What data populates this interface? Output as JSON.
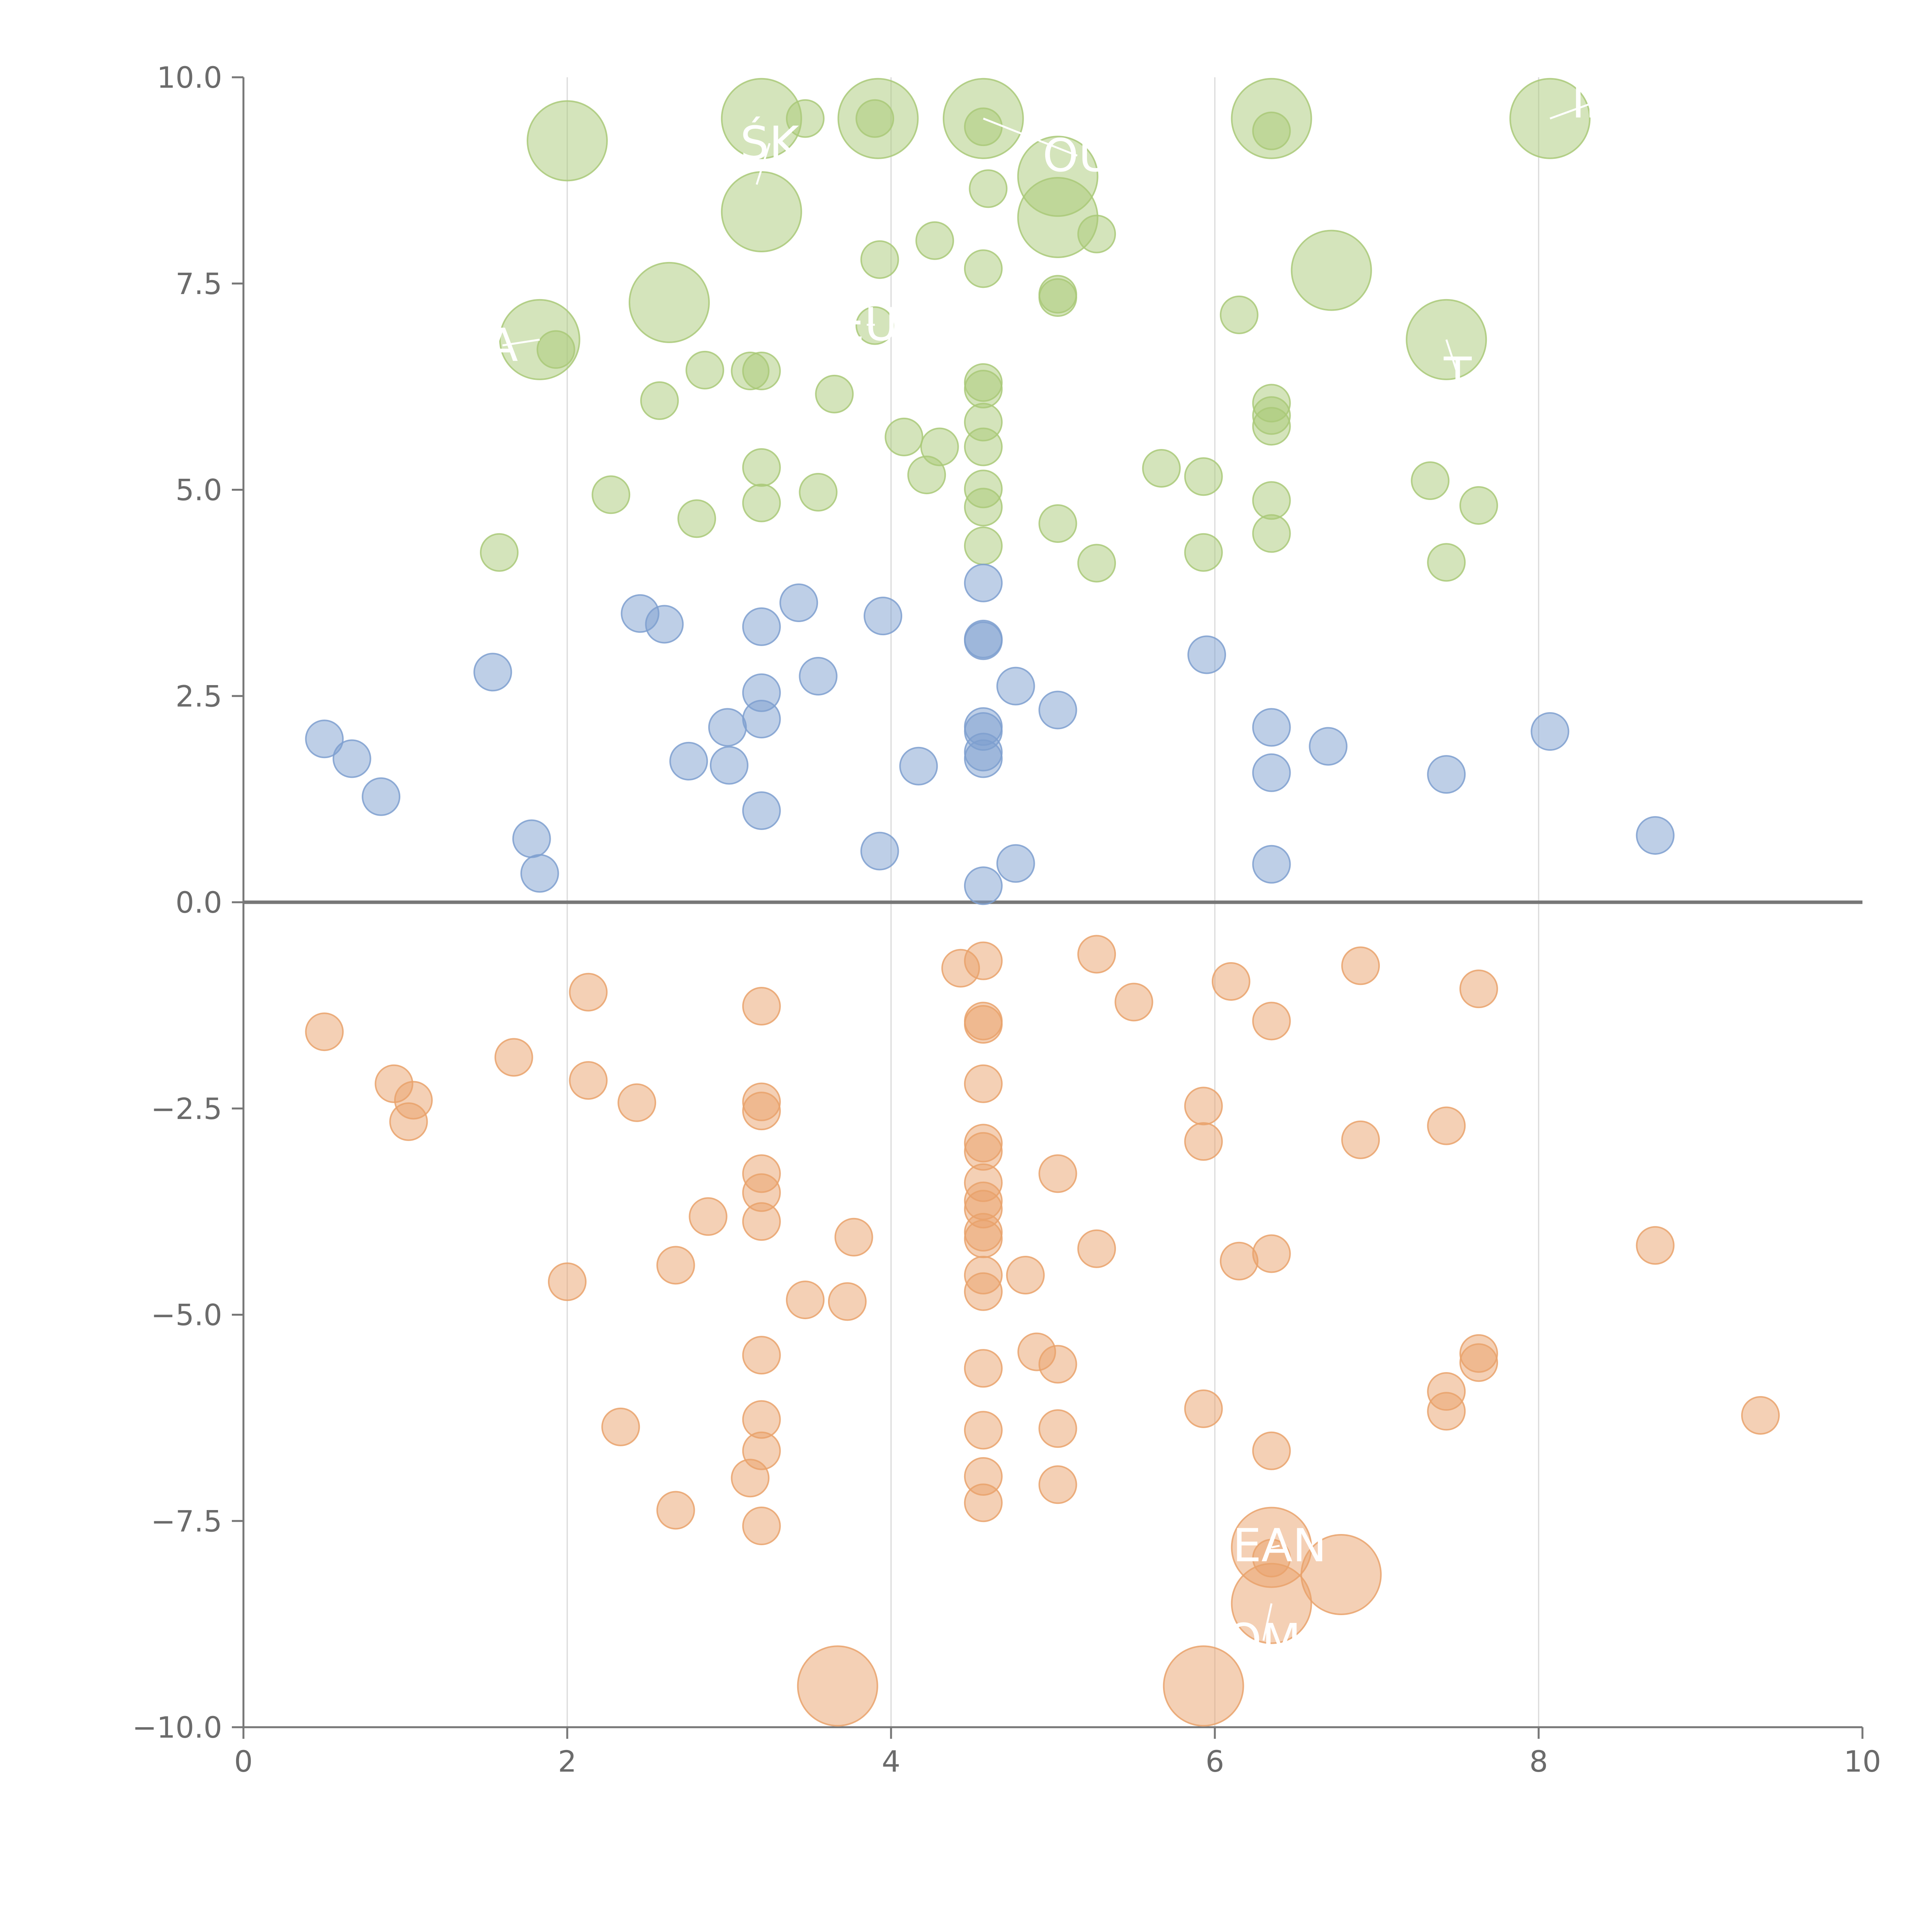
{
  "chart_data": {
    "type": "scatter",
    "title": "",
    "xlabel": "",
    "ylabel": "",
    "xlim": [
      0,
      10
    ],
    "ylim": [
      -10,
      10
    ],
    "x_ticks": [
      "0",
      "2",
      "4",
      "6",
      "8",
      "10"
    ],
    "y_ticks": [
      "10.0",
      "7.5",
      "5.0",
      "2.5",
      "0.0",
      "−2.5",
      "−5.0",
      "−7.5",
      "−10.0"
    ],
    "grid": "vertical lines at x ticks",
    "zero_line": 0,
    "colors": {
      "green": "#a9c978",
      "blue": "#7e9fcf",
      "orange": "#e9a26b"
    },
    "series": [
      {
        "color_key": "green",
        "points": [
          [
            2.0,
            9.23,
            1
          ],
          [
            3.2,
            9.5,
            1
          ],
          [
            3.47,
            9.5,
            0
          ],
          [
            3.92,
            9.5,
            1
          ],
          [
            3.9,
            9.5,
            0
          ],
          [
            4.57,
            9.5,
            1
          ],
          [
            4.57,
            9.4,
            0
          ],
          [
            6.35,
            9.5,
            1
          ],
          [
            6.35,
            9.35,
            0
          ],
          [
            8.07,
            9.5,
            1
          ],
          [
            5.03,
            8.8,
            1
          ],
          [
            5.03,
            8.3,
            1
          ],
          [
            3.2,
            8.37,
            1
          ],
          [
            4.6,
            8.65,
            0
          ],
          [
            5.27,
            8.1,
            0
          ],
          [
            4.27,
            8.02,
            0
          ],
          [
            3.93,
            7.79,
            0
          ],
          [
            4.57,
            7.68,
            0
          ],
          [
            6.72,
            7.66,
            1
          ],
          [
            2.63,
            7.27,
            1
          ],
          [
            5.03,
            7.37,
            0
          ],
          [
            5.03,
            7.33,
            0
          ],
          [
            6.15,
            7.12,
            0
          ],
          [
            3.9,
            6.99,
            0
          ],
          [
            1.83,
            6.82,
            1
          ],
          [
            1.93,
            6.7,
            0
          ],
          [
            7.43,
            6.82,
            1
          ],
          [
            2.85,
            6.45,
            0
          ],
          [
            3.13,
            6.44,
            0
          ],
          [
            3.2,
            6.44,
            0
          ],
          [
            4.57,
            6.3,
            0
          ],
          [
            4.57,
            6.22,
            0
          ],
          [
            3.65,
            6.16,
            0
          ],
          [
            2.57,
            6.08,
            0
          ],
          [
            6.35,
            6.05,
            0
          ],
          [
            6.35,
            5.9,
            0
          ],
          [
            6.35,
            5.77,
            0
          ],
          [
            4.57,
            5.82,
            0
          ],
          [
            4.08,
            5.64,
            0
          ],
          [
            4.3,
            5.52,
            0
          ],
          [
            4.57,
            5.52,
            0
          ],
          [
            5.67,
            5.26,
            0
          ],
          [
            3.2,
            5.27,
            0
          ],
          [
            4.22,
            5.18,
            0
          ],
          [
            5.93,
            5.16,
            0
          ],
          [
            7.33,
            5.11,
            0
          ],
          [
            4.57,
            5.01,
            0
          ],
          [
            2.27,
            4.94,
            0
          ],
          [
            3.55,
            4.97,
            0
          ],
          [
            3.2,
            4.84,
            0
          ],
          [
            4.57,
            4.79,
            0
          ],
          [
            6.35,
            4.87,
            0
          ],
          [
            7.63,
            4.81,
            0
          ],
          [
            2.8,
            4.65,
            0
          ],
          [
            5.03,
            4.59,
            0
          ],
          [
            4.57,
            4.32,
            0
          ],
          [
            5.93,
            4.24,
            0
          ],
          [
            1.58,
            4.24,
            0
          ],
          [
            6.35,
            4.47,
            0
          ],
          [
            5.27,
            4.11,
            0
          ],
          [
            7.43,
            4.12,
            0
          ]
        ]
      },
      {
        "color_key": "blue",
        "points": [
          [
            4.57,
            3.87,
            0
          ],
          [
            3.43,
            3.63,
            0
          ],
          [
            2.45,
            3.5,
            0
          ],
          [
            3.95,
            3.47,
            0
          ],
          [
            2.6,
            3.37,
            0
          ],
          [
            3.2,
            3.34,
            0
          ],
          [
            4.57,
            3.19,
            0
          ],
          [
            4.57,
            3.17,
            0
          ],
          [
            5.95,
            3.0,
            0
          ],
          [
            1.54,
            2.79,
            0
          ],
          [
            3.55,
            2.74,
            0
          ],
          [
            4.77,
            2.62,
            0
          ],
          [
            3.2,
            2.54,
            0
          ],
          [
            5.03,
            2.33,
            0
          ],
          [
            3.2,
            2.22,
            0
          ],
          [
            2.99,
            2.12,
            0
          ],
          [
            4.57,
            2.13,
            0
          ],
          [
            4.57,
            2.07,
            0
          ],
          [
            6.35,
            2.12,
            0
          ],
          [
            8.07,
            2.07,
            0
          ],
          [
            0.5,
            1.98,
            0
          ],
          [
            6.7,
            1.89,
            0
          ],
          [
            4.57,
            1.82,
            0
          ],
          [
            4.57,
            1.74,
            0
          ],
          [
            0.67,
            1.74,
            0
          ],
          [
            2.75,
            1.71,
            0
          ],
          [
            3.0,
            1.66,
            0
          ],
          [
            4.17,
            1.65,
            0
          ],
          [
            6.35,
            1.57,
            0
          ],
          [
            7.43,
            1.55,
            0
          ],
          [
            0.85,
            1.28,
            0
          ],
          [
            3.2,
            1.11,
            0
          ],
          [
            8.72,
            0.81,
            0
          ],
          [
            1.78,
            0.77,
            0
          ],
          [
            3.93,
            0.62,
            0
          ],
          [
            4.77,
            0.47,
            0
          ],
          [
            6.35,
            0.46,
            0
          ],
          [
            1.83,
            0.35,
            0
          ],
          [
            4.57,
            0.2,
            0
          ]
        ]
      },
      {
        "color_key": "orange",
        "points": [
          [
            5.27,
            -0.63,
            0
          ],
          [
            4.57,
            -0.71,
            0
          ],
          [
            6.9,
            -0.77,
            0
          ],
          [
            4.43,
            -0.8,
            0
          ],
          [
            6.1,
            -0.96,
            0
          ],
          [
            7.63,
            -1.05,
            0
          ],
          [
            2.13,
            -1.09,
            0
          ],
          [
            5.5,
            -1.21,
            0
          ],
          [
            3.2,
            -1.26,
            0
          ],
          [
            6.35,
            -1.44,
            0
          ],
          [
            4.57,
            -1.44,
            0
          ],
          [
            4.57,
            -1.48,
            0
          ],
          [
            0.5,
            -1.57,
            0
          ],
          [
            1.67,
            -1.88,
            0
          ],
          [
            2.13,
            -2.16,
            0
          ],
          [
            0.93,
            -2.2,
            0
          ],
          [
            4.57,
            -2.2,
            0
          ],
          [
            1.05,
            -2.4,
            0
          ],
          [
            2.43,
            -2.43,
            0
          ],
          [
            3.2,
            -2.42,
            0
          ],
          [
            5.93,
            -2.47,
            0
          ],
          [
            3.2,
            -2.53,
            0
          ],
          [
            1.02,
            -2.66,
            0
          ],
          [
            7.43,
            -2.71,
            0
          ],
          [
            6.9,
            -2.88,
            0
          ],
          [
            5.93,
            -2.9,
            0
          ],
          [
            4.57,
            -2.92,
            0
          ],
          [
            4.57,
            -3.02,
            0
          ],
          [
            3.2,
            -3.29,
            0
          ],
          [
            5.03,
            -3.29,
            0
          ],
          [
            4.57,
            -3.4,
            0
          ],
          [
            3.2,
            -3.52,
            0
          ],
          [
            4.57,
            -3.62,
            0
          ],
          [
            4.57,
            -3.72,
            0
          ],
          [
            2.87,
            -3.81,
            0
          ],
          [
            3.2,
            -3.87,
            0
          ],
          [
            4.57,
            -4.0,
            0
          ],
          [
            4.57,
            -4.08,
            0
          ],
          [
            3.77,
            -4.06,
            0
          ],
          [
            5.27,
            -4.2,
            0
          ],
          [
            8.72,
            -4.16,
            0
          ],
          [
            6.35,
            -4.26,
            0
          ],
          [
            6.15,
            -4.35,
            0
          ],
          [
            2.67,
            -4.4,
            0
          ],
          [
            4.57,
            -4.52,
            0
          ],
          [
            4.83,
            -4.52,
            0
          ],
          [
            2.0,
            -4.6,
            0
          ],
          [
            4.57,
            -4.72,
            0
          ],
          [
            3.47,
            -4.82,
            0
          ],
          [
            3.73,
            -4.84,
            0
          ],
          [
            7.63,
            -5.47,
            0
          ],
          [
            4.9,
            -5.45,
            0
          ],
          [
            7.63,
            -5.58,
            0
          ],
          [
            3.2,
            -5.49,
            0
          ],
          [
            5.03,
            -5.6,
            0
          ],
          [
            4.57,
            -5.65,
            0
          ],
          [
            7.43,
            -5.93,
            0
          ],
          [
            5.93,
            -6.14,
            0
          ],
          [
            7.43,
            -6.17,
            0
          ],
          [
            9.37,
            -6.22,
            0
          ],
          [
            3.2,
            -6.27,
            0
          ],
          [
            2.33,
            -6.36,
            0
          ],
          [
            4.57,
            -6.4,
            0
          ],
          [
            5.03,
            -6.38,
            0
          ],
          [
            3.2,
            -6.65,
            0
          ],
          [
            6.35,
            -6.65,
            0
          ],
          [
            4.57,
            -6.96,
            0
          ],
          [
            3.13,
            -6.98,
            0
          ],
          [
            5.03,
            -7.06,
            0
          ],
          [
            4.57,
            -7.28,
            0
          ],
          [
            2.67,
            -7.37,
            0
          ],
          [
            3.2,
            -7.56,
            0
          ],
          [
            6.35,
            -7.82,
            1
          ],
          [
            6.35,
            -7.95,
            0
          ],
          [
            6.78,
            -8.15,
            1
          ],
          [
            6.35,
            -8.5,
            1
          ],
          [
            3.67,
            -9.5,
            1
          ],
          [
            5.93,
            -9.5,
            1
          ]
        ]
      }
    ],
    "labels": [
      {
        "text": "ŚK",
        "x": 3.25,
        "y": 9.2,
        "lx": 3.17,
        "ly": 8.7
      },
      {
        "text": "OU",
        "x": 5.15,
        "y": 9.05,
        "lx": 4.57,
        "ly": 9.5
      },
      {
        "text": "IN",
        "x": 8.35,
        "y": 9.7,
        "lx": 8.07,
        "ly": 9.5
      },
      {
        "text": "EU",
        "x": 3.85,
        "y": 7.0,
        "lx": 3.9,
        "ly": 7.0
      },
      {
        "text": "A",
        "x": 1.6,
        "y": 6.75,
        "lx": 1.83,
        "ly": 6.82
      },
      {
        "text": "T",
        "x": 7.5,
        "y": 6.4,
        "lx": 7.43,
        "ly": 6.82
      },
      {
        "text": "EAN",
        "x": 6.4,
        "y": -7.8,
        "lx": 6.35,
        "ly": -7.82
      },
      {
        "text": "OM",
        "x": 6.3,
        "y": -8.95,
        "lx": 6.35,
        "ly": -8.5
      }
    ]
  }
}
